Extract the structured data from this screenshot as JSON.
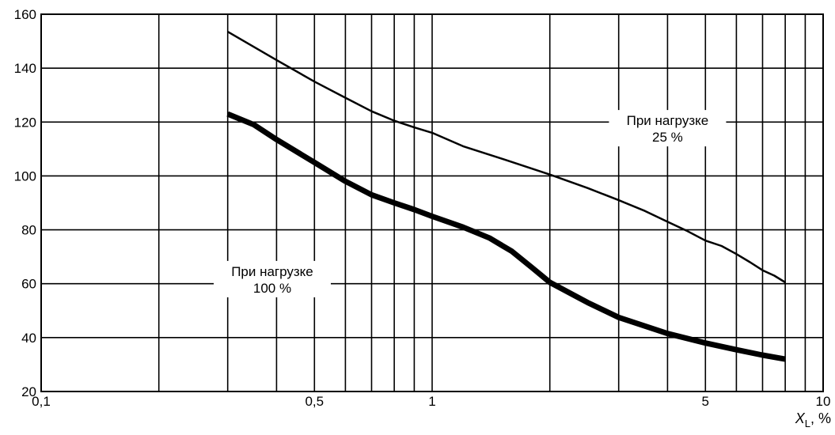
{
  "chart_data": {
    "type": "line",
    "x_scale": "log",
    "xlim": [
      0.1,
      10
    ],
    "ylim": [
      20,
      160
    ],
    "grid": true,
    "x_tick_labels": [
      {
        "value": 0.1,
        "label": "0,1"
      },
      {
        "value": 0.5,
        "label": "0,5"
      },
      {
        "value": 1,
        "label": "1"
      },
      {
        "value": 5,
        "label": "5"
      },
      {
        "value": 10,
        "label": "10"
      }
    ],
    "y_ticks": [
      20,
      40,
      60,
      80,
      100,
      120,
      140,
      160
    ],
    "xlabel_main": "X",
    "xlabel_sub": "L",
    "xlabel_unit": ", %",
    "series": [
      {
        "label_line1": "При нагрузке",
        "label_line2": "25 %",
        "label_at": {
          "x": 4.0,
          "y": 118
        },
        "color": "#000000",
        "points": [
          [
            0.3,
            153.5
          ],
          [
            0.4,
            143
          ],
          [
            0.5,
            135
          ],
          [
            0.6,
            129
          ],
          [
            0.7,
            124
          ],
          [
            0.8,
            120.5
          ],
          [
            0.9,
            118
          ],
          [
            1.0,
            116
          ],
          [
            1.2,
            111
          ],
          [
            1.5,
            106.5
          ],
          [
            2.0,
            100.5
          ],
          [
            2.5,
            95.5
          ],
          [
            3.0,
            91
          ],
          [
            3.5,
            87
          ],
          [
            4.0,
            83
          ],
          [
            4.5,
            79.5
          ],
          [
            5.0,
            76
          ],
          [
            5.5,
            74
          ],
          [
            6.0,
            71
          ],
          [
            6.5,
            68
          ],
          [
            7.0,
            65
          ],
          [
            7.5,
            63
          ],
          [
            8.0,
            60.5
          ]
        ]
      },
      {
        "label_line1": "При нагрузке",
        "label_line2": "100 %",
        "label_at": {
          "x": 0.39,
          "y": 62
        },
        "color": "#000000",
        "points": [
          [
            0.3,
            123
          ],
          [
            0.35,
            119
          ],
          [
            0.4,
            113.5
          ],
          [
            0.5,
            105
          ],
          [
            0.6,
            98
          ],
          [
            0.7,
            93
          ],
          [
            0.8,
            90
          ],
          [
            0.9,
            87.5
          ],
          [
            1.0,
            85
          ],
          [
            1.2,
            81
          ],
          [
            1.4,
            77
          ],
          [
            1.6,
            72
          ],
          [
            1.8,
            66
          ],
          [
            2.0,
            60.5
          ],
          [
            2.5,
            53
          ],
          [
            3.0,
            47.5
          ],
          [
            4.0,
            41.5
          ],
          [
            5.0,
            38
          ],
          [
            6.0,
            35.5
          ],
          [
            7.0,
            33.5
          ],
          [
            8.0,
            32
          ]
        ]
      }
    ]
  }
}
